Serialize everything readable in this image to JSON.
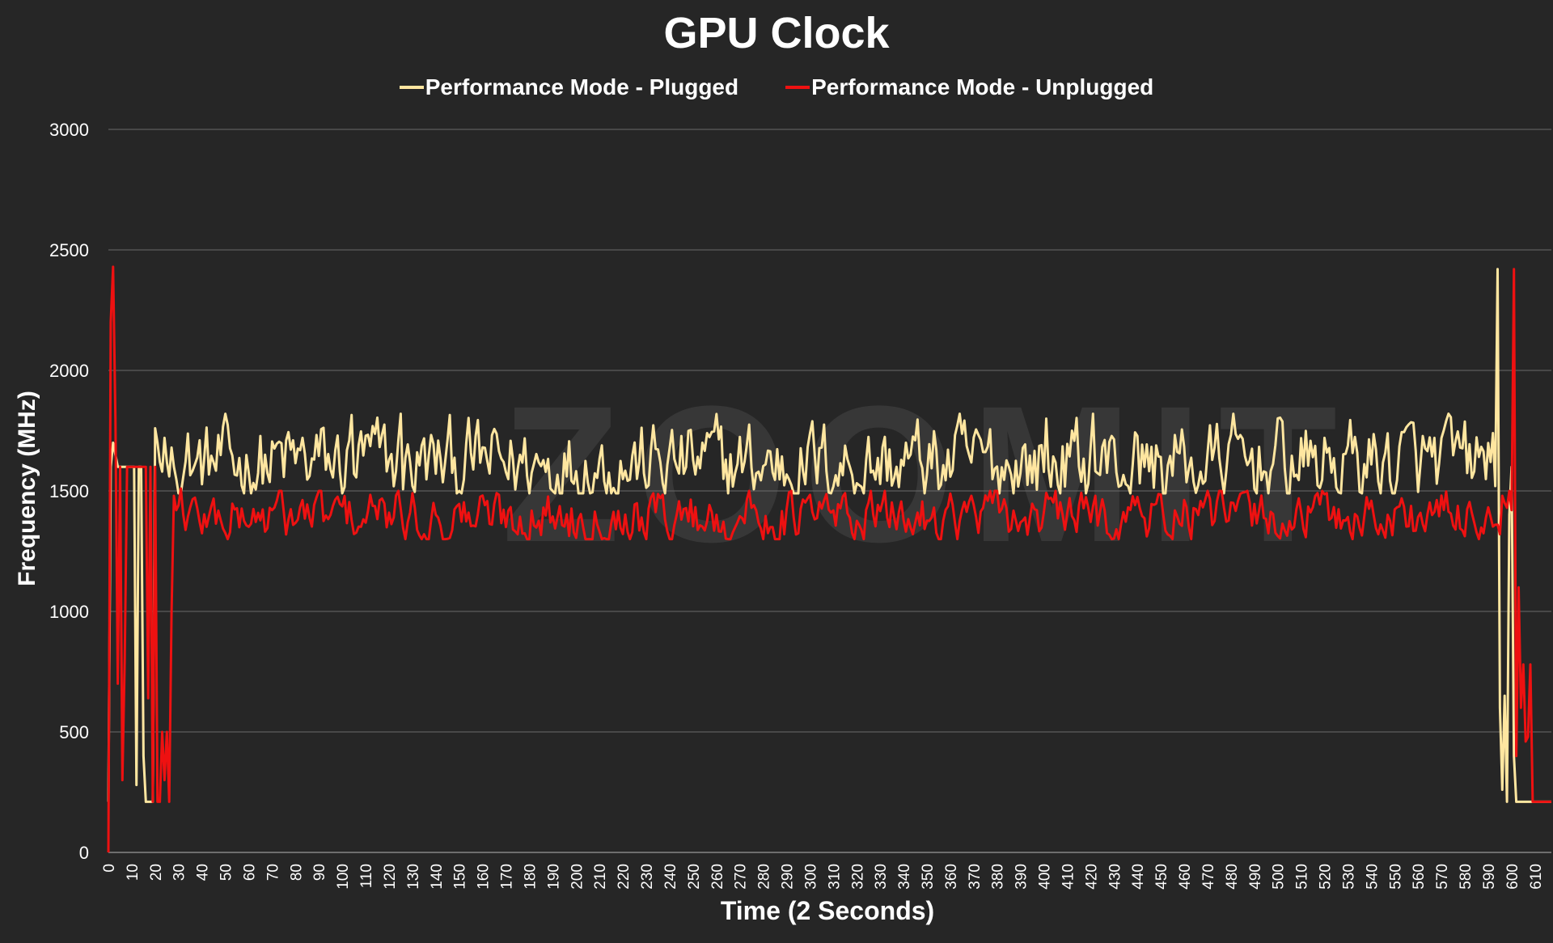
{
  "chart_data": {
    "type": "line",
    "title": "GPU Clock",
    "xlabel": "Time (2 Seconds)",
    "ylabel": "Frequency (MHz)",
    "xlim": [
      0,
      617
    ],
    "ylim": [
      0,
      3000
    ],
    "y_ticks": [
      0,
      500,
      1000,
      1500,
      2000,
      2500,
      3000
    ],
    "x_ticks": [
      0,
      10,
      20,
      30,
      40,
      50,
      60,
      70,
      80,
      90,
      100,
      110,
      120,
      130,
      140,
      150,
      160,
      170,
      180,
      190,
      200,
      210,
      220,
      230,
      240,
      250,
      260,
      270,
      280,
      290,
      300,
      310,
      320,
      330,
      340,
      350,
      360,
      370,
      380,
      390,
      400,
      410,
      420,
      430,
      440,
      450,
      460,
      470,
      480,
      490,
      500,
      510,
      520,
      530,
      540,
      550,
      560,
      570,
      580,
      590,
      600,
      610
    ],
    "grid": "horizontal",
    "legend_position": "top",
    "watermark": "ZOOMIT",
    "colors": {
      "background": "#262626",
      "grid": "#6b6b6b",
      "plugged": "#FFE6A0",
      "unplugged": "#EE1111"
    },
    "series": [
      {
        "name": "Performance Mode - Plugged",
        "color": "#FFE6A0",
        "profile": [
          [
            0,
            210
          ],
          [
            1,
            1600
          ],
          [
            2,
            1700
          ],
          [
            3,
            1650
          ],
          [
            4,
            1600
          ],
          [
            5,
            1600
          ],
          [
            6,
            1600
          ],
          [
            7,
            1600
          ],
          [
            8,
            1600
          ],
          [
            9,
            1600
          ],
          [
            10,
            1600
          ],
          [
            11,
            1600
          ],
          [
            12,
            280
          ],
          [
            13,
            1600
          ],
          [
            14,
            1600
          ],
          [
            15,
            400
          ],
          [
            16,
            210
          ],
          [
            17,
            210
          ],
          [
            18,
            210
          ],
          [
            19,
            210
          ],
          [
            20,
            1760
          ],
          [
            21,
            1700
          ],
          [
            22,
            1620
          ],
          [
            23,
            1580
          ],
          [
            24,
            1720
          ],
          [
            25,
            1620
          ],
          [
            26,
            1560
          ],
          [
            27,
            1680
          ],
          [
            28,
            1600
          ],
          [
            29,
            1550
          ]
        ],
        "tail": [
          [
            591,
            1620
          ],
          [
            592,
            1740
          ],
          [
            593,
            1520
          ],
          [
            594,
            2420
          ],
          [
            595,
            600
          ],
          [
            596,
            260
          ],
          [
            597,
            650
          ],
          [
            598,
            210
          ],
          [
            599,
            1400
          ],
          [
            600,
            1600
          ],
          [
            601,
            400
          ],
          [
            602,
            210
          ],
          [
            603,
            210
          ],
          [
            604,
            210
          ],
          [
            605,
            210
          ],
          [
            606,
            210
          ],
          [
            607,
            210
          ],
          [
            608,
            210
          ],
          [
            609,
            210
          ],
          [
            610,
            210
          ],
          [
            611,
            210
          ],
          [
            612,
            210
          ],
          [
            613,
            210
          ],
          [
            614,
            210
          ],
          [
            615,
            210
          ],
          [
            616,
            210
          ],
          [
            617,
            210
          ]
        ],
        "steady": {
          "range": [
            30,
            590
          ],
          "mean": 1610,
          "min": 1490,
          "max": 1820,
          "peaks": [
            [
              104,
              1815
            ],
            [
              125,
              1820
            ],
            [
              401,
              1800
            ],
            [
              421,
              1820
            ]
          ]
        }
      },
      {
        "name": "Performance Mode - Unplugged",
        "color": "#EE1111",
        "profile": [
          [
            0,
            0
          ],
          [
            1,
            2200
          ],
          [
            2,
            2430
          ],
          [
            3,
            1800
          ],
          [
            4,
            700
          ],
          [
            5,
            1600
          ],
          [
            6,
            300
          ],
          [
            7,
            800
          ],
          [
            8,
            1600
          ],
          [
            9,
            1600
          ],
          [
            10,
            1600
          ],
          [
            11,
            1600
          ],
          [
            12,
            1600
          ],
          [
            13,
            1600
          ],
          [
            14,
            1600
          ],
          [
            15,
            1600
          ],
          [
            16,
            1600
          ],
          [
            17,
            640
          ],
          [
            18,
            1600
          ],
          [
            19,
            210
          ],
          [
            20,
            1600
          ],
          [
            21,
            210
          ],
          [
            22,
            210
          ],
          [
            23,
            500
          ],
          [
            24,
            300
          ],
          [
            25,
            500
          ],
          [
            26,
            210
          ],
          [
            27,
            1000
          ],
          [
            28,
            1480
          ],
          [
            29,
            1420
          ],
          [
            30,
            1440
          ],
          [
            31,
            1510
          ]
        ],
        "tail": [
          [
            595,
            1320
          ],
          [
            596,
            1480
          ],
          [
            597,
            1450
          ],
          [
            598,
            1430
          ],
          [
            599,
            1500
          ],
          [
            600,
            1420
          ],
          [
            601,
            2420
          ],
          [
            602,
            400
          ],
          [
            603,
            1100
          ],
          [
            604,
            600
          ],
          [
            605,
            780
          ],
          [
            606,
            460
          ],
          [
            607,
            480
          ],
          [
            608,
            780
          ],
          [
            609,
            210
          ],
          [
            610,
            210
          ],
          [
            611,
            210
          ],
          [
            612,
            210
          ],
          [
            613,
            210
          ],
          [
            614,
            210
          ],
          [
            615,
            210
          ],
          [
            616,
            210
          ],
          [
            617,
            210
          ]
        ],
        "steady": {
          "range": [
            32,
            594
          ],
          "mean": 1395,
          "min": 1300,
          "max": 1500,
          "peaks": []
        }
      }
    ]
  }
}
